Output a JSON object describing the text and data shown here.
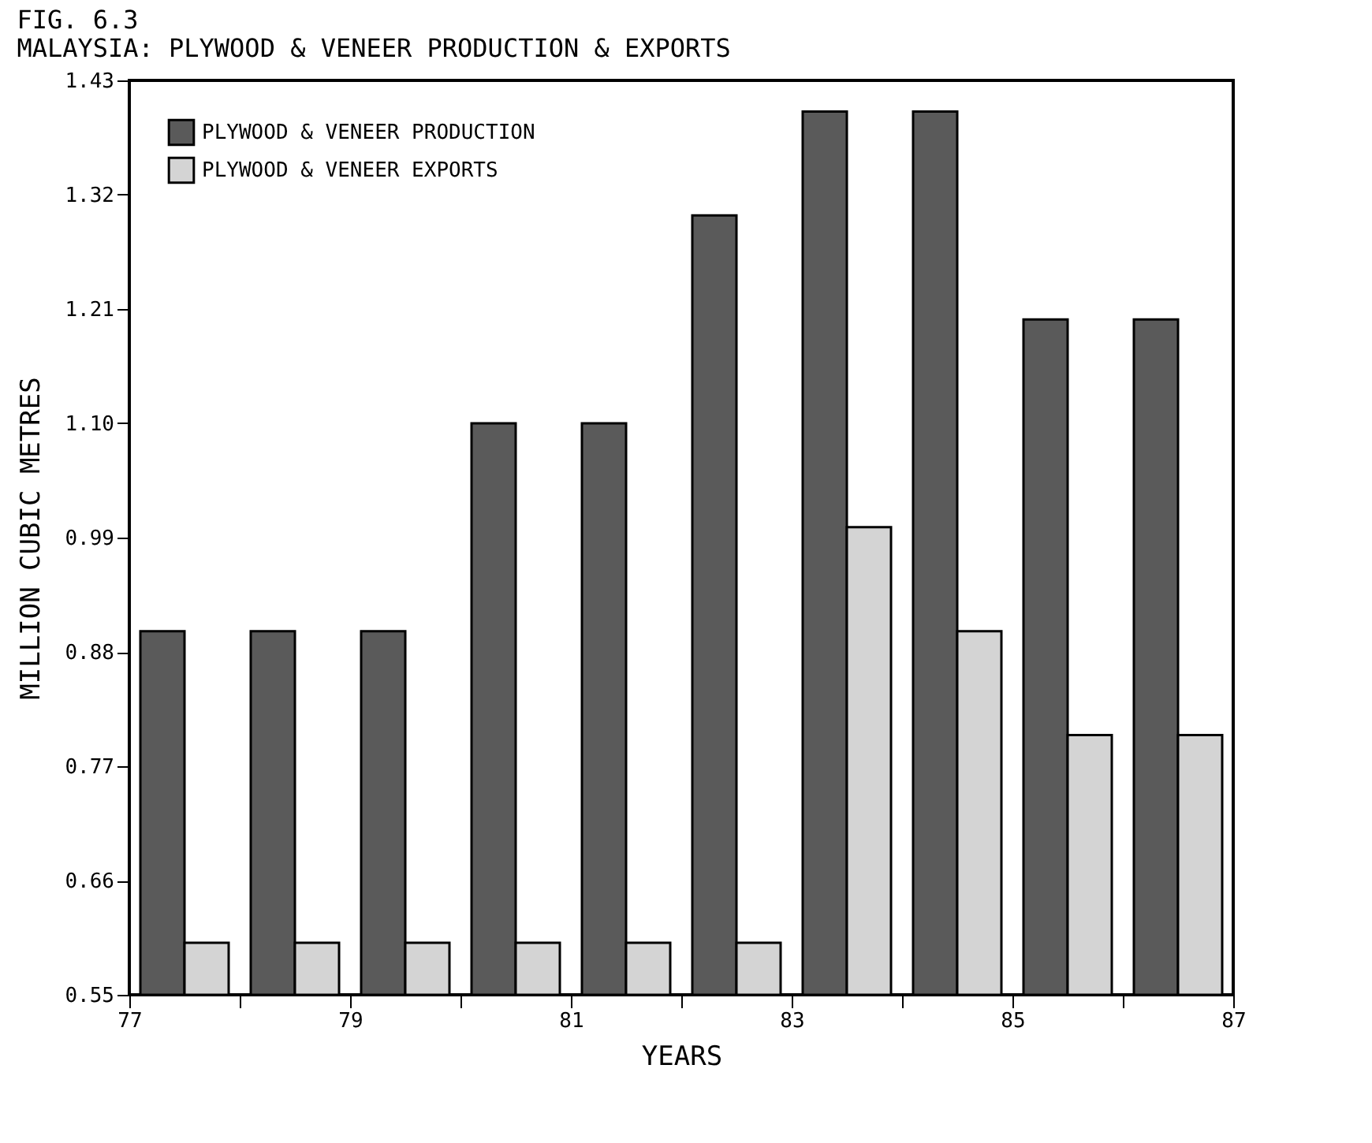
{
  "chart_data": {
    "type": "bar",
    "title": "FIG. 6.3",
    "subtitle": "MALAYSIA: PLYWOOD & VENEER PRODUCTION & EXPORTS",
    "xlabel": "YEARS",
    "ylabel": "MILLION CUBIC METRES",
    "x": [
      77.5,
      78.5,
      79.5,
      80.5,
      81.5,
      82.5,
      83.5,
      84.5,
      85.5,
      86.5
    ],
    "series": [
      {
        "name": "PLYWOOD & VENEER PRODUCTION",
        "color": "#5a5a5a",
        "values": [
          0.9,
          0.9,
          0.9,
          1.1,
          1.1,
          1.3,
          1.4,
          1.4,
          1.2,
          1.2
        ]
      },
      {
        "name": "PLYWOOD & VENEER EXPORTS",
        "color": "#d4d4d4",
        "values": [
          0.6,
          0.6,
          0.6,
          0.6,
          0.6,
          0.6,
          1.0,
          0.9,
          0.8,
          0.8
        ]
      }
    ],
    "xlim": [
      77,
      87
    ],
    "xticks": [
      77,
      {
        "value": 78,
        "label": null
      },
      79,
      {
        "value": 80,
        "label": null
      },
      81,
      {
        "value": 82,
        "label": null
      },
      83,
      {
        "value": 84,
        "label": null
      },
      85,
      {
        "value": 86,
        "label": null
      },
      87
    ],
    "ylim": [
      0.55,
      1.43
    ],
    "yticks": [
      0.55,
      0.66,
      0.77,
      0.88,
      0.99,
      {
        "value": 1.1,
        "label": "1.10"
      },
      1.21,
      1.32,
      1.43
    ],
    "grid": false,
    "legend": "top left"
  }
}
